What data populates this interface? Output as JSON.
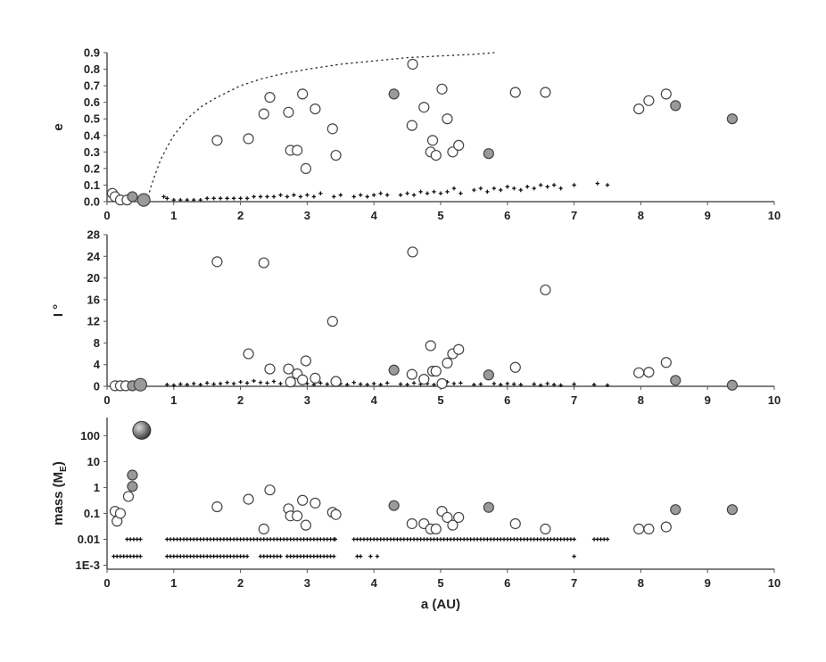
{
  "colors": {
    "open_circle_fill": "#ffffff",
    "open_circle_stroke": "#444444",
    "filled_circle_fill": "#9a9a9a",
    "planetesimal": "#111111",
    "axis": "#555555",
    "boundary_curve": "#333333"
  },
  "chart_data": [
    {
      "id": "e",
      "type": "scatter",
      "ylabel": "e",
      "xlabel": "",
      "xlim": [
        0,
        10
      ],
      "ylim": [
        0,
        0.9
      ],
      "x_ticks": [
        "0",
        "1",
        "2",
        "3",
        "4",
        "5",
        "6",
        "7",
        "8",
        "9",
        "10"
      ],
      "y_ticks": [
        "0.0",
        "0.1",
        "0.2",
        "0.3",
        "0.4",
        "0.5",
        "0.6",
        "0.7",
        "0.8",
        "0.9"
      ],
      "open_circles": [
        [
          0.08,
          0.05
        ],
        [
          0.12,
          0.03
        ],
        [
          0.2,
          0.01
        ],
        [
          0.3,
          0.01
        ],
        [
          1.65,
          0.37
        ],
        [
          2.12,
          0.38
        ],
        [
          2.35,
          0.53
        ],
        [
          2.44,
          0.63
        ],
        [
          2.72,
          0.54
        ],
        [
          2.75,
          0.31
        ],
        [
          2.85,
          0.31
        ],
        [
          2.93,
          0.65
        ],
        [
          2.98,
          0.2
        ],
        [
          3.12,
          0.56
        ],
        [
          3.38,
          0.44
        ],
        [
          3.43,
          0.28
        ],
        [
          4.57,
          0.46
        ],
        [
          4.58,
          0.83
        ],
        [
          4.75,
          0.57
        ],
        [
          4.85,
          0.3
        ],
        [
          4.88,
          0.37
        ],
        [
          4.93,
          0.28
        ],
        [
          5.02,
          0.68
        ],
        [
          5.1,
          0.5
        ],
        [
          5.18,
          0.3
        ],
        [
          5.27,
          0.34
        ],
        [
          6.12,
          0.66
        ],
        [
          6.57,
          0.66
        ],
        [
          7.97,
          0.56
        ],
        [
          8.12,
          0.61
        ],
        [
          8.38,
          0.65
        ]
      ],
      "filled_circles": [
        {
          "x": 0.38,
          "y": 0.03,
          "size": "small"
        },
        {
          "x": 0.55,
          "y": 0.01,
          "size": "medium"
        },
        {
          "x": 4.3,
          "y": 0.65,
          "size": "small"
        },
        {
          "x": 5.72,
          "y": 0.29,
          "size": "small"
        },
        {
          "x": 8.52,
          "y": 0.58,
          "size": "small"
        },
        {
          "x": 9.37,
          "y": 0.5,
          "size": "small"
        }
      ],
      "planetesimals": [
        [
          0.85,
          0.03
        ],
        [
          0.9,
          0.02
        ],
        [
          1.0,
          0.01
        ],
        [
          1.1,
          0.01
        ],
        [
          1.2,
          0.01
        ],
        [
          1.3,
          0.01
        ],
        [
          1.4,
          0.01
        ],
        [
          1.5,
          0.02
        ],
        [
          1.6,
          0.02
        ],
        [
          1.7,
          0.02
        ],
        [
          1.8,
          0.02
        ],
        [
          1.9,
          0.02
        ],
        [
          2.0,
          0.02
        ],
        [
          2.1,
          0.02
        ],
        [
          2.2,
          0.03
        ],
        [
          2.3,
          0.03
        ],
        [
          2.4,
          0.03
        ],
        [
          2.5,
          0.03
        ],
        [
          2.6,
          0.04
        ],
        [
          2.7,
          0.03
        ],
        [
          2.8,
          0.04
        ],
        [
          2.9,
          0.03
        ],
        [
          3.0,
          0.04
        ],
        [
          3.1,
          0.03
        ],
        [
          3.2,
          0.05
        ],
        [
          3.4,
          0.03
        ],
        [
          3.5,
          0.04
        ],
        [
          3.7,
          0.03
        ],
        [
          3.8,
          0.04
        ],
        [
          3.9,
          0.03
        ],
        [
          4.0,
          0.04
        ],
        [
          4.1,
          0.05
        ],
        [
          4.2,
          0.04
        ],
        [
          4.4,
          0.04
        ],
        [
          4.5,
          0.05
        ],
        [
          4.6,
          0.04
        ],
        [
          4.7,
          0.06
        ],
        [
          4.8,
          0.05
        ],
        [
          4.9,
          0.06
        ],
        [
          5.0,
          0.05
        ],
        [
          5.1,
          0.06
        ],
        [
          5.2,
          0.08
        ],
        [
          5.3,
          0.05
        ],
        [
          5.5,
          0.07
        ],
        [
          5.6,
          0.08
        ],
        [
          5.7,
          0.06
        ],
        [
          5.8,
          0.08
        ],
        [
          5.9,
          0.07
        ],
        [
          6.0,
          0.09
        ],
        [
          6.1,
          0.08
        ],
        [
          6.2,
          0.07
        ],
        [
          6.3,
          0.09
        ],
        [
          6.4,
          0.08
        ],
        [
          6.5,
          0.1
        ],
        [
          6.6,
          0.09
        ],
        [
          6.7,
          0.1
        ],
        [
          6.8,
          0.08
        ],
        [
          7.0,
          0.1
        ],
        [
          7.35,
          0.11
        ],
        [
          7.5,
          0.1
        ]
      ],
      "boundary_curve": [
        [
          0.6,
          0.0
        ],
        [
          0.65,
          0.08
        ],
        [
          0.7,
          0.14
        ],
        [
          0.8,
          0.25
        ],
        [
          0.9,
          0.33
        ],
        [
          1.0,
          0.4
        ],
        [
          1.2,
          0.5
        ],
        [
          1.4,
          0.57
        ],
        [
          1.6,
          0.62
        ],
        [
          1.8,
          0.66
        ],
        [
          2.0,
          0.7
        ],
        [
          2.3,
          0.74
        ],
        [
          2.6,
          0.77
        ],
        [
          3.0,
          0.8
        ],
        [
          3.5,
          0.83
        ],
        [
          4.0,
          0.85
        ],
        [
          4.5,
          0.87
        ],
        [
          5.0,
          0.88
        ],
        [
          5.5,
          0.89
        ],
        [
          5.8,
          0.9
        ]
      ]
    },
    {
      "id": "i",
      "type": "scatter",
      "ylabel": "I °",
      "xlabel": "",
      "xlim": [
        0,
        10
      ],
      "ylim": [
        0,
        28
      ],
      "x_ticks": [
        "0",
        "1",
        "2",
        "3",
        "4",
        "5",
        "6",
        "7",
        "8",
        "9",
        "10"
      ],
      "y_ticks": [
        "0",
        "4",
        "8",
        "12",
        "16",
        "20",
        "24",
        "28"
      ],
      "open_circles": [
        [
          0.12,
          0.1
        ],
        [
          0.2,
          0.1
        ],
        [
          0.28,
          0.1
        ],
        [
          1.65,
          23
        ],
        [
          2.12,
          6
        ],
        [
          2.35,
          22.8
        ],
        [
          2.44,
          3.2
        ],
        [
          2.72,
          3.2
        ],
        [
          2.75,
          0.8
        ],
        [
          2.85,
          2.3
        ],
        [
          2.93,
          1.2
        ],
        [
          2.98,
          4.7
        ],
        [
          3.12,
          1.5
        ],
        [
          3.38,
          12
        ],
        [
          3.43,
          0.9
        ],
        [
          4.57,
          2.2
        ],
        [
          4.58,
          24.8
        ],
        [
          4.75,
          1.3
        ],
        [
          4.85,
          7.5
        ],
        [
          4.88,
          2.8
        ],
        [
          4.93,
          2.8
        ],
        [
          5.02,
          0.5
        ],
        [
          5.1,
          4.3
        ],
        [
          5.18,
          6
        ],
        [
          5.27,
          6.8
        ],
        [
          6.12,
          3.5
        ],
        [
          6.57,
          17.8
        ],
        [
          7.97,
          2.5
        ],
        [
          8.12,
          2.6
        ],
        [
          8.38,
          4.4
        ]
      ],
      "filled_circles": [
        {
          "x": 0.38,
          "y": 0.1,
          "size": "small"
        },
        {
          "x": 0.5,
          "y": 0.3,
          "size": "medium"
        },
        {
          "x": 4.3,
          "y": 3.0,
          "size": "small"
        },
        {
          "x": 5.72,
          "y": 2.1,
          "size": "small"
        },
        {
          "x": 8.52,
          "y": 1.1,
          "size": "small"
        },
        {
          "x": 9.37,
          "y": 0.2,
          "size": "small"
        }
      ],
      "planetesimals": [
        [
          0.9,
          0.3
        ],
        [
          1.0,
          0.2
        ],
        [
          1.1,
          0.4
        ],
        [
          1.2,
          0.3
        ],
        [
          1.3,
          0.5
        ],
        [
          1.4,
          0.3
        ],
        [
          1.5,
          0.6
        ],
        [
          1.6,
          0.4
        ],
        [
          1.7,
          0.5
        ],
        [
          1.8,
          0.7
        ],
        [
          1.9,
          0.5
        ],
        [
          2.0,
          0.8
        ],
        [
          2.1,
          0.6
        ],
        [
          2.2,
          1.0
        ],
        [
          2.3,
          0.7
        ],
        [
          2.4,
          0.6
        ],
        [
          2.5,
          0.9
        ],
        [
          2.6,
          0.5
        ],
        [
          2.7,
          0.7
        ],
        [
          2.8,
          0.4
        ],
        [
          2.9,
          0.6
        ],
        [
          3.0,
          0.5
        ],
        [
          3.1,
          0.3
        ],
        [
          3.2,
          0.6
        ],
        [
          3.3,
          0.4
        ],
        [
          3.5,
          0.5
        ],
        [
          3.6,
          0.3
        ],
        [
          3.7,
          0.7
        ],
        [
          3.8,
          0.4
        ],
        [
          3.9,
          0.3
        ],
        [
          4.0,
          0.5
        ],
        [
          4.1,
          0.3
        ],
        [
          4.2,
          0.6
        ],
        [
          4.4,
          0.4
        ],
        [
          4.5,
          0.3
        ],
        [
          4.6,
          0.6
        ],
        [
          4.7,
          0.4
        ],
        [
          4.8,
          0.5
        ],
        [
          4.9,
          0.3
        ],
        [
          5.0,
          0.6
        ],
        [
          5.1,
          0.8
        ],
        [
          5.2,
          0.5
        ],
        [
          5.3,
          0.6
        ],
        [
          5.5,
          0.3
        ],
        [
          5.6,
          0.4
        ],
        [
          5.8,
          0.5
        ],
        [
          5.9,
          0.3
        ],
        [
          6.0,
          0.5
        ],
        [
          6.1,
          0.4
        ],
        [
          6.2,
          0.3
        ],
        [
          6.4,
          0.4
        ],
        [
          6.5,
          0.2
        ],
        [
          6.6,
          0.5
        ],
        [
          6.7,
          0.3
        ],
        [
          6.8,
          0.2
        ],
        [
          7.0,
          0.4
        ],
        [
          7.3,
          0.3
        ],
        [
          7.5,
          0.2
        ]
      ]
    },
    {
      "id": "mass",
      "type": "scatter",
      "ylabel": "mass (M",
      "ylabel_sub": "E",
      "ylabel_close": ")",
      "xlabel": "a (AU)",
      "xlim": [
        0,
        10
      ],
      "ylim": [
        0.0007,
        500
      ],
      "yscale": "log",
      "x_ticks": [
        "0",
        "1",
        "2",
        "3",
        "4",
        "5",
        "6",
        "7",
        "8",
        "9",
        "10"
      ],
      "y_ticks": [
        "1E-3",
        "0.01",
        "0.1",
        "1",
        "10",
        "100"
      ],
      "open_circles": [
        [
          0.12,
          0.12
        ],
        [
          0.15,
          0.05
        ],
        [
          0.2,
          0.1
        ],
        [
          0.32,
          0.45
        ],
        [
          1.65,
          0.18
        ],
        [
          2.12,
          0.35
        ],
        [
          2.35,
          0.025
        ],
        [
          2.44,
          0.8
        ],
        [
          2.72,
          0.15
        ],
        [
          2.75,
          0.08
        ],
        [
          2.85,
          0.08
        ],
        [
          2.93,
          0.32
        ],
        [
          2.98,
          0.035
        ],
        [
          3.12,
          0.25
        ],
        [
          3.38,
          0.11
        ],
        [
          3.43,
          0.09
        ],
        [
          4.57,
          0.04
        ],
        [
          4.75,
          0.04
        ],
        [
          4.85,
          0.025
        ],
        [
          4.93,
          0.025
        ],
        [
          5.02,
          0.12
        ],
        [
          5.1,
          0.07
        ],
        [
          5.18,
          0.035
        ],
        [
          5.27,
          0.07
        ],
        [
          6.12,
          0.04
        ],
        [
          6.57,
          0.025
        ],
        [
          7.97,
          0.025
        ],
        [
          8.12,
          0.025
        ],
        [
          8.38,
          0.03
        ]
      ],
      "filled_circles": [
        {
          "x": 0.38,
          "y": 3.0,
          "size": "small"
        },
        {
          "x": 0.38,
          "y": 1.1,
          "size": "small"
        },
        {
          "x": 4.3,
          "y": 0.2,
          "size": "small"
        },
        {
          "x": 5.72,
          "y": 0.17,
          "size": "small"
        },
        {
          "x": 8.52,
          "y": 0.14,
          "size": "small"
        },
        {
          "x": 9.37,
          "y": 0.14,
          "size": "small"
        }
      ],
      "large_body": {
        "x": 0.52,
        "y": 160
      },
      "planetesimal_rows": [
        {
          "y": 0.01,
          "x_ranges": [
            [
              0.3,
              0.5
            ],
            [
              0.9,
              2.7
            ],
            [
              2.75,
              3.0
            ],
            [
              3.05,
              3.4
            ],
            [
              3.75,
              7.0
            ],
            [
              7.3,
              7.5
            ]
          ],
          "extra_x": [
            3.42,
            3.7
          ]
        },
        {
          "y": 0.0022,
          "x_ranges": [
            [
              0.1,
              0.5
            ],
            [
              0.9,
              2.1
            ],
            [
              2.3,
              2.6
            ],
            [
              2.7,
              3.4
            ],
            [
              3.75,
              3.8
            ]
          ],
          "extra_x": [
            3.95,
            4.05,
            7.0
          ]
        }
      ]
    }
  ]
}
